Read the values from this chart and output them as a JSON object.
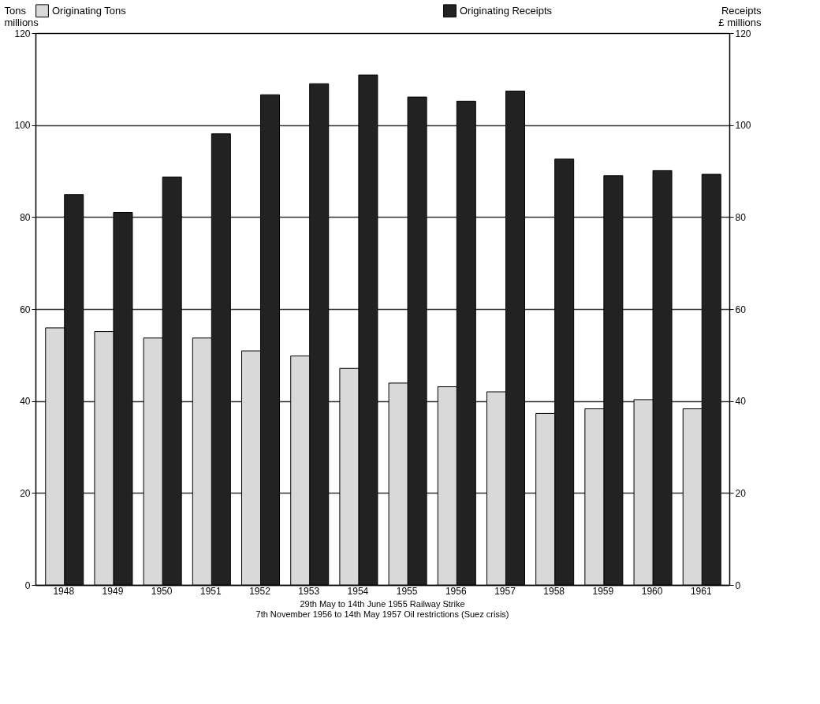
{
  "chart_data": {
    "type": "bar",
    "categories": [
      "1948",
      "1949",
      "1950",
      "1951",
      "1952",
      "1953",
      "1954",
      "1955",
      "1956",
      "1957",
      "1958",
      "1959",
      "1960",
      "1961"
    ],
    "series": [
      {
        "name": "Originating Tons",
        "color": "#d9d9d9",
        "values": [
          55.9,
          55.1,
          53.7,
          53.7,
          50.9,
          49.8,
          47.1,
          43.9,
          43.1,
          42.0,
          37.3,
          38.3,
          40.3,
          38.3
        ]
      },
      {
        "name": "Originating Receipts",
        "color": "#222222",
        "axis": "y2",
        "values": [
          84.9,
          81.0,
          88.7,
          98.1,
          106.6,
          109.0,
          110.9,
          106.1,
          105.2,
          107.4,
          92.6,
          89.0,
          90.1,
          89.3
        ]
      }
    ],
    "ylabel": "Tons millions",
    "y2label": "Receipts £ millions",
    "ylim": [
      0,
      120
    ],
    "yticks": [
      0,
      20,
      40,
      60,
      80,
      100,
      120
    ],
    "y2lim": [
      0,
      120
    ],
    "y2ticks": [
      0,
      20,
      40,
      60,
      80,
      100,
      120
    ],
    "grid": "y",
    "legend": "top",
    "annotations": [
      "29th May to 14th June 1955 Railway Strike",
      "7th November 1956 to 14th May 1957 Oil restrictions (Suez crisis)"
    ]
  }
}
